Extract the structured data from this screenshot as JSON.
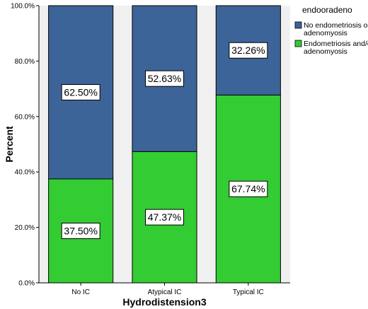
{
  "chart_data": {
    "type": "bar",
    "stacked": true,
    "categories": [
      "No IC",
      "Atypical IC",
      "Typical IC"
    ],
    "series": [
      {
        "name": "Endometriosis and/or adenomyosis",
        "legend_lines": [
          "Endometriosis and/or",
          "adenomyosis"
        ],
        "values": [
          37.5,
          47.37,
          67.74
        ],
        "labels": [
          "37.50%",
          "47.37%",
          "67.74%"
        ],
        "color": "#33cc33"
      },
      {
        "name": "No endometriosis or adenomyosis",
        "legend_lines": [
          "No endometriosis or",
          "adenomyosis"
        ],
        "values": [
          62.5,
          52.63,
          32.26
        ],
        "labels": [
          "62.50%",
          "52.63%",
          "32.26%"
        ],
        "color": "#3d6499"
      }
    ],
    "legend_order": [
      1,
      0
    ],
    "legend_title": "endooradeno",
    "legend_position": "right",
    "xlabel": "Hydrodistension3",
    "ylabel": "Percent",
    "ylim": [
      0,
      100
    ],
    "yticks": [
      0,
      20,
      40,
      60,
      80,
      100
    ],
    "ytick_labels": [
      "0.0%",
      "20.0%",
      "40.0%",
      "60.0%",
      "80.0%",
      "100.0%"
    ],
    "plot_background": "#f0f0f0",
    "grid": false
  }
}
